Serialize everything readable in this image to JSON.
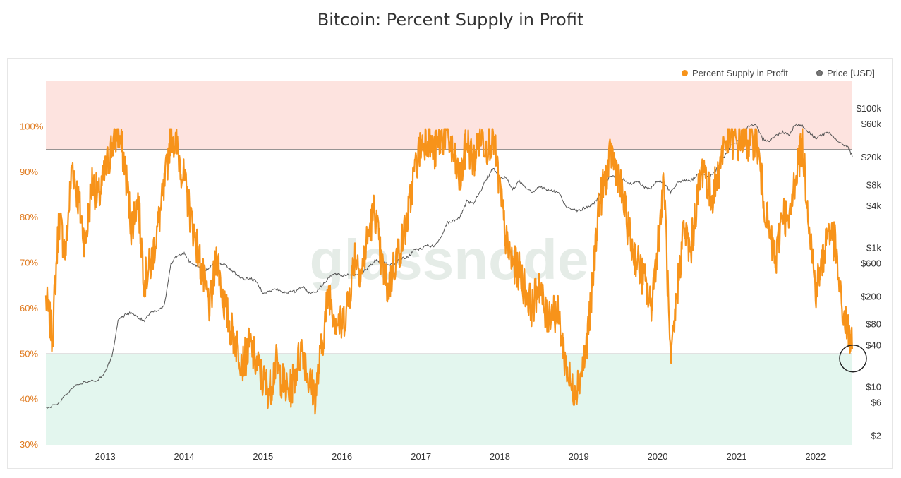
{
  "title": "Bitcoin: Percent Supply in Profit",
  "colors": {
    "supply": "#f7931a",
    "price": "#555555",
    "left_axis_text": "#e07b20",
    "right_axis_text": "#333333",
    "upper_band": "#fde3df",
    "lower_band": "#e3f6ee",
    "band_line": "#888888",
    "watermark": "#e5ece7"
  },
  "watermark": "glassnode",
  "chart_data": {
    "type": "line",
    "title": "Bitcoin: Percent Supply in Profit",
    "x_range": [
      "2012-04-01",
      "2022-06-20"
    ],
    "x_ticks": [
      "2013",
      "2014",
      "2015",
      "2016",
      "2017",
      "2018",
      "2019",
      "2020",
      "2021",
      "2022"
    ],
    "y_left": {
      "range": [
        30,
        110
      ],
      "ticks": [
        "30%",
        "40%",
        "50%",
        "60%",
        "70%",
        "80%",
        "90%",
        "100%"
      ],
      "unit": "percent"
    },
    "y_right": {
      "scale": "log",
      "range": [
        1.5,
        250000
      ],
      "ticks": [
        "$2",
        "$6",
        "$10",
        "$40",
        "$80",
        "$200",
        "$600",
        "$1k",
        "$4k",
        "$8k",
        "$20k",
        "$60k",
        "$100k"
      ],
      "tick_values": [
        2,
        6,
        10,
        40,
        80,
        200,
        600,
        1000,
        4000,
        8000,
        20000,
        60000,
        100000
      ]
    },
    "bands": [
      {
        "from": 95,
        "to": 110,
        "color": "#fde3df"
      },
      {
        "from": 30,
        "to": 50,
        "color": "#e3f6ee"
      }
    ],
    "legend": {
      "placement": "top-right",
      "entries": [
        "Percent Supply in Profit",
        "Price [USD]"
      ]
    },
    "series": [
      {
        "name": "Percent Supply in Profit",
        "axis": "left",
        "color": "#f7931a",
        "points": [
          [
            "2012-04-01",
            62
          ],
          [
            "2012-05-01",
            54
          ],
          [
            "2012-06-01",
            80
          ],
          [
            "2012-07-01",
            72
          ],
          [
            "2012-08-01",
            92
          ],
          [
            "2012-09-01",
            83
          ],
          [
            "2012-10-01",
            74
          ],
          [
            "2012-11-01",
            88
          ],
          [
            "2012-12-01",
            84
          ],
          [
            "2013-01-01",
            90
          ],
          [
            "2013-02-01",
            96
          ],
          [
            "2013-03-01",
            99
          ],
          [
            "2013-04-01",
            92
          ],
          [
            "2013-05-01",
            78
          ],
          [
            "2013-06-01",
            84
          ],
          [
            "2013-07-01",
            66
          ],
          [
            "2013-08-01",
            70
          ],
          [
            "2013-09-01",
            78
          ],
          [
            "2013-10-01",
            86
          ],
          [
            "2013-11-01",
            99
          ],
          [
            "2013-12-01",
            95
          ],
          [
            "2014-01-01",
            88
          ],
          [
            "2014-02-01",
            80
          ],
          [
            "2014-03-01",
            74
          ],
          [
            "2014-04-01",
            66
          ],
          [
            "2014-05-01",
            60
          ],
          [
            "2014-06-01",
            72
          ],
          [
            "2014-07-01",
            62
          ],
          [
            "2014-08-01",
            56
          ],
          [
            "2014-09-01",
            52
          ],
          [
            "2014-10-01",
            48
          ],
          [
            "2014-11-01",
            52
          ],
          [
            "2014-12-01",
            48
          ],
          [
            "2015-01-01",
            44
          ],
          [
            "2015-02-01",
            42
          ],
          [
            "2015-03-01",
            48
          ],
          [
            "2015-04-01",
            44
          ],
          [
            "2015-05-01",
            41
          ],
          [
            "2015-06-01",
            46
          ],
          [
            "2015-07-01",
            52
          ],
          [
            "2015-08-01",
            44
          ],
          [
            "2015-09-01",
            41
          ],
          [
            "2015-10-01",
            52
          ],
          [
            "2015-11-01",
            64
          ],
          [
            "2015-12-01",
            58
          ],
          [
            "2016-01-01",
            56
          ],
          [
            "2016-02-01",
            62
          ],
          [
            "2016-03-01",
            72
          ],
          [
            "2016-04-01",
            68
          ],
          [
            "2016-05-01",
            76
          ],
          [
            "2016-06-01",
            82
          ],
          [
            "2016-07-01",
            70
          ],
          [
            "2016-08-01",
            64
          ],
          [
            "2016-09-01",
            70
          ],
          [
            "2016-10-01",
            74
          ],
          [
            "2016-11-01",
            80
          ],
          [
            "2016-12-01",
            90
          ],
          [
            "2017-01-01",
            96
          ],
          [
            "2017-02-01",
            98
          ],
          [
            "2017-03-01",
            94
          ],
          [
            "2017-04-01",
            97
          ],
          [
            "2017-05-01",
            99
          ],
          [
            "2017-06-01",
            93
          ],
          [
            "2017-07-01",
            88
          ],
          [
            "2017-08-01",
            97
          ],
          [
            "2017-09-01",
            92
          ],
          [
            "2017-10-01",
            98
          ],
          [
            "2017-11-01",
            96
          ],
          [
            "2017-12-01",
            98
          ],
          [
            "2018-01-01",
            86
          ],
          [
            "2018-02-01",
            74
          ],
          [
            "2018-03-01",
            70
          ],
          [
            "2018-04-01",
            68
          ],
          [
            "2018-05-01",
            64
          ],
          [
            "2018-06-01",
            60
          ],
          [
            "2018-07-01",
            66
          ],
          [
            "2018-08-01",
            58
          ],
          [
            "2018-09-01",
            60
          ],
          [
            "2018-10-01",
            58
          ],
          [
            "2018-11-01",
            48
          ],
          [
            "2018-12-01",
            42
          ],
          [
            "2019-01-01",
            44
          ],
          [
            "2019-02-01",
            50
          ],
          [
            "2019-03-01",
            62
          ],
          [
            "2019-04-01",
            82
          ],
          [
            "2019-05-01",
            88
          ],
          [
            "2019-06-01",
            94
          ],
          [
            "2019-07-01",
            90
          ],
          [
            "2019-08-01",
            82
          ],
          [
            "2019-09-01",
            74
          ],
          [
            "2019-10-01",
            70
          ],
          [
            "2019-11-01",
            66
          ],
          [
            "2019-12-01",
            60
          ],
          [
            "2020-01-01",
            74
          ],
          [
            "2020-02-01",
            88
          ],
          [
            "2020-03-01",
            46
          ],
          [
            "2020-04-01",
            64
          ],
          [
            "2020-05-01",
            78
          ],
          [
            "2020-06-01",
            72
          ],
          [
            "2020-07-01",
            84
          ],
          [
            "2020-08-01",
            92
          ],
          [
            "2020-09-01",
            84
          ],
          [
            "2020-10-01",
            88
          ],
          [
            "2020-11-01",
            96
          ],
          [
            "2020-12-01",
            98
          ],
          [
            "2021-01-01",
            96
          ],
          [
            "2021-02-01",
            98
          ],
          [
            "2021-03-01",
            96
          ],
          [
            "2021-04-01",
            98
          ],
          [
            "2021-05-01",
            86
          ],
          [
            "2021-06-01",
            76
          ],
          [
            "2021-07-01",
            70
          ],
          [
            "2021-08-01",
            82
          ],
          [
            "2021-09-01",
            78
          ],
          [
            "2021-10-01",
            90
          ],
          [
            "2021-11-01",
            96
          ],
          [
            "2021-12-01",
            80
          ],
          [
            "2022-01-01",
            64
          ],
          [
            "2022-02-01",
            70
          ],
          [
            "2022-03-01",
            78
          ],
          [
            "2022-04-01",
            74
          ],
          [
            "2022-05-01",
            60
          ],
          [
            "2022-06-01",
            55
          ],
          [
            "2022-06-20",
            51
          ]
        ]
      },
      {
        "name": "Price [USD]",
        "axis": "right",
        "color": "#555555",
        "points": [
          [
            "2012-04-01",
            5
          ],
          [
            "2012-06-01",
            6
          ],
          [
            "2012-08-01",
            10
          ],
          [
            "2012-10-01",
            12
          ],
          [
            "2012-12-01",
            13
          ],
          [
            "2013-01-01",
            17
          ],
          [
            "2013-02-01",
            28
          ],
          [
            "2013-03-01",
            90
          ],
          [
            "2013-04-01",
            110
          ],
          [
            "2013-05-01",
            120
          ],
          [
            "2013-06-01",
            100
          ],
          [
            "2013-07-01",
            90
          ],
          [
            "2013-08-01",
            120
          ],
          [
            "2013-09-01",
            125
          ],
          [
            "2013-10-01",
            150
          ],
          [
            "2013-11-01",
            600
          ],
          [
            "2013-12-01",
            800
          ],
          [
            "2014-01-01",
            850
          ],
          [
            "2014-02-01",
            600
          ],
          [
            "2014-03-01",
            560
          ],
          [
            "2014-04-01",
            450
          ],
          [
            "2014-05-01",
            550
          ],
          [
            "2014-06-01",
            600
          ],
          [
            "2014-07-01",
            600
          ],
          [
            "2014-08-01",
            500
          ],
          [
            "2014-09-01",
            420
          ],
          [
            "2014-10-01",
            360
          ],
          [
            "2014-11-01",
            370
          ],
          [
            "2014-12-01",
            330
          ],
          [
            "2015-01-01",
            230
          ],
          [
            "2015-02-01",
            240
          ],
          [
            "2015-03-01",
            260
          ],
          [
            "2015-04-01",
            230
          ],
          [
            "2015-05-01",
            235
          ],
          [
            "2015-06-01",
            240
          ],
          [
            "2015-07-01",
            285
          ],
          [
            "2015-08-01",
            230
          ],
          [
            "2015-09-01",
            235
          ],
          [
            "2015-10-01",
            290
          ],
          [
            "2015-11-01",
            380
          ],
          [
            "2015-12-01",
            430
          ],
          [
            "2016-01-01",
            400
          ],
          [
            "2016-02-01",
            420
          ],
          [
            "2016-03-01",
            415
          ],
          [
            "2016-04-01",
            440
          ],
          [
            "2016-05-01",
            520
          ],
          [
            "2016-06-01",
            650
          ],
          [
            "2016-07-01",
            660
          ],
          [
            "2016-08-01",
            580
          ],
          [
            "2016-09-01",
            610
          ],
          [
            "2016-10-01",
            700
          ],
          [
            "2016-11-01",
            740
          ],
          [
            "2016-12-01",
            960
          ],
          [
            "2017-01-01",
            970
          ],
          [
            "2017-02-01",
            1100
          ],
          [
            "2017-03-01",
            1050
          ],
          [
            "2017-04-01",
            1350
          ],
          [
            "2017-05-01",
            2300
          ],
          [
            "2017-06-01",
            2500
          ],
          [
            "2017-07-01",
            2800
          ],
          [
            "2017-08-01",
            4700
          ],
          [
            "2017-09-01",
            4300
          ],
          [
            "2017-10-01",
            6400
          ],
          [
            "2017-11-01",
            10000
          ],
          [
            "2017-12-01",
            14000
          ],
          [
            "2018-01-01",
            10200
          ],
          [
            "2018-02-01",
            10300
          ],
          [
            "2018-03-01",
            6900
          ],
          [
            "2018-04-01",
            9200
          ],
          [
            "2018-05-01",
            7500
          ],
          [
            "2018-06-01",
            6400
          ],
          [
            "2018-07-01",
            7700
          ],
          [
            "2018-08-01",
            7000
          ],
          [
            "2018-09-01",
            6600
          ],
          [
            "2018-10-01",
            6300
          ],
          [
            "2018-11-01",
            4000
          ],
          [
            "2018-12-01",
            3700
          ],
          [
            "2019-01-01",
            3450
          ],
          [
            "2019-02-01",
            3800
          ],
          [
            "2019-03-01",
            4100
          ],
          [
            "2019-04-01",
            5300
          ],
          [
            "2019-05-01",
            8500
          ],
          [
            "2019-06-01",
            11000
          ],
          [
            "2019-07-01",
            10100
          ],
          [
            "2019-08-01",
            9600
          ],
          [
            "2019-09-01",
            8300
          ],
          [
            "2019-10-01",
            9200
          ],
          [
            "2019-11-01",
            7500
          ],
          [
            "2019-12-01",
            7200
          ],
          [
            "2020-01-01",
            9300
          ],
          [
            "2020-02-01",
            8600
          ],
          [
            "2020-03-01",
            6400
          ],
          [
            "2020-04-01",
            8600
          ],
          [
            "2020-05-01",
            9500
          ],
          [
            "2020-06-01",
            9100
          ],
          [
            "2020-07-01",
            11300
          ],
          [
            "2020-08-01",
            11700
          ],
          [
            "2020-09-01",
            10800
          ],
          [
            "2020-10-01",
            13800
          ],
          [
            "2020-11-01",
            19700
          ],
          [
            "2020-12-01",
            29000
          ],
          [
            "2021-01-01",
            33000
          ],
          [
            "2021-02-01",
            45000
          ],
          [
            "2021-03-01",
            58000
          ],
          [
            "2021-04-01",
            57000
          ],
          [
            "2021-05-01",
            37000
          ],
          [
            "2021-06-01",
            35000
          ],
          [
            "2021-07-01",
            41000
          ],
          [
            "2021-08-01",
            47000
          ],
          [
            "2021-09-01",
            43000
          ],
          [
            "2021-10-01",
            61000
          ],
          [
            "2021-11-01",
            57000
          ],
          [
            "2021-12-01",
            46000
          ],
          [
            "2022-01-01",
            38000
          ],
          [
            "2022-02-01",
            43000
          ],
          [
            "2022-03-01",
            45000
          ],
          [
            "2022-04-01",
            38000
          ],
          [
            "2022-05-01",
            31000
          ],
          [
            "2022-06-01",
            29000
          ],
          [
            "2022-06-20",
            20500
          ]
        ]
      }
    ],
    "annotations": [
      {
        "type": "circle",
        "date": "2022-06-20",
        "value": 49,
        "axis": "left"
      }
    ]
  }
}
